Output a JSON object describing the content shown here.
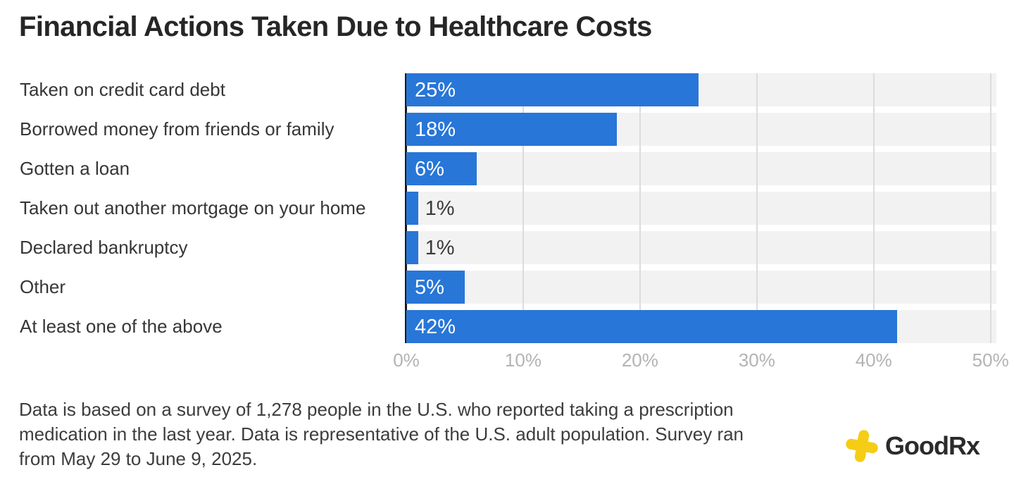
{
  "title": "Financial Actions Taken Due to Healthcare Costs",
  "chart_data": {
    "type": "bar",
    "orientation": "horizontal",
    "title": "Financial Actions Taken Due to Healthcare Costs",
    "categories": [
      "Taken on credit card debt",
      "Borrowed money from friends or family",
      "Gotten a loan",
      "Taken out another mortgage on your home",
      "Declared bankruptcy",
      "Other",
      "At least one of the above"
    ],
    "values": [
      25,
      18,
      6,
      1,
      1,
      5,
      42
    ],
    "value_labels": [
      "25%",
      "18%",
      "6%",
      "1%",
      "1%",
      "5%",
      "42%"
    ],
    "unit": "%",
    "xlim": [
      0,
      50.5
    ],
    "x_ticks": [
      {
        "value": 0,
        "label": "0%"
      },
      {
        "value": 10,
        "label": "10%"
      },
      {
        "value": 20,
        "label": "20%"
      },
      {
        "value": 30,
        "label": "30%"
      },
      {
        "value": 40,
        "label": "40%"
      },
      {
        "value": 50,
        "label": "50%"
      }
    ],
    "grid": "vertical gridlines every 10%",
    "legend": "none",
    "colors": {
      "bar": "#2876d7",
      "plot_background": "#f2f2f2",
      "gridline": "#dcdcdc",
      "axis_line": "#1a1a1a",
      "tick_label": "#b3b3b3",
      "value_label_inside": "#ffffff",
      "value_label_outside": "#3a3a3a"
    }
  },
  "footer": {
    "lines": [
      "Data is based on a survey of 1,278 people in the U.S. who reported taking a prescription",
      "medication in the last year. Data is representative of the U.S. adult population. Survey ran",
      "from May 29 to June 9, 2025."
    ]
  },
  "branding": {
    "wordmark": "GoodRx",
    "icon": "goodrx-cross-icon",
    "icon_color": "#f5cd15",
    "wordmark_color": "#2b2b2b"
  }
}
